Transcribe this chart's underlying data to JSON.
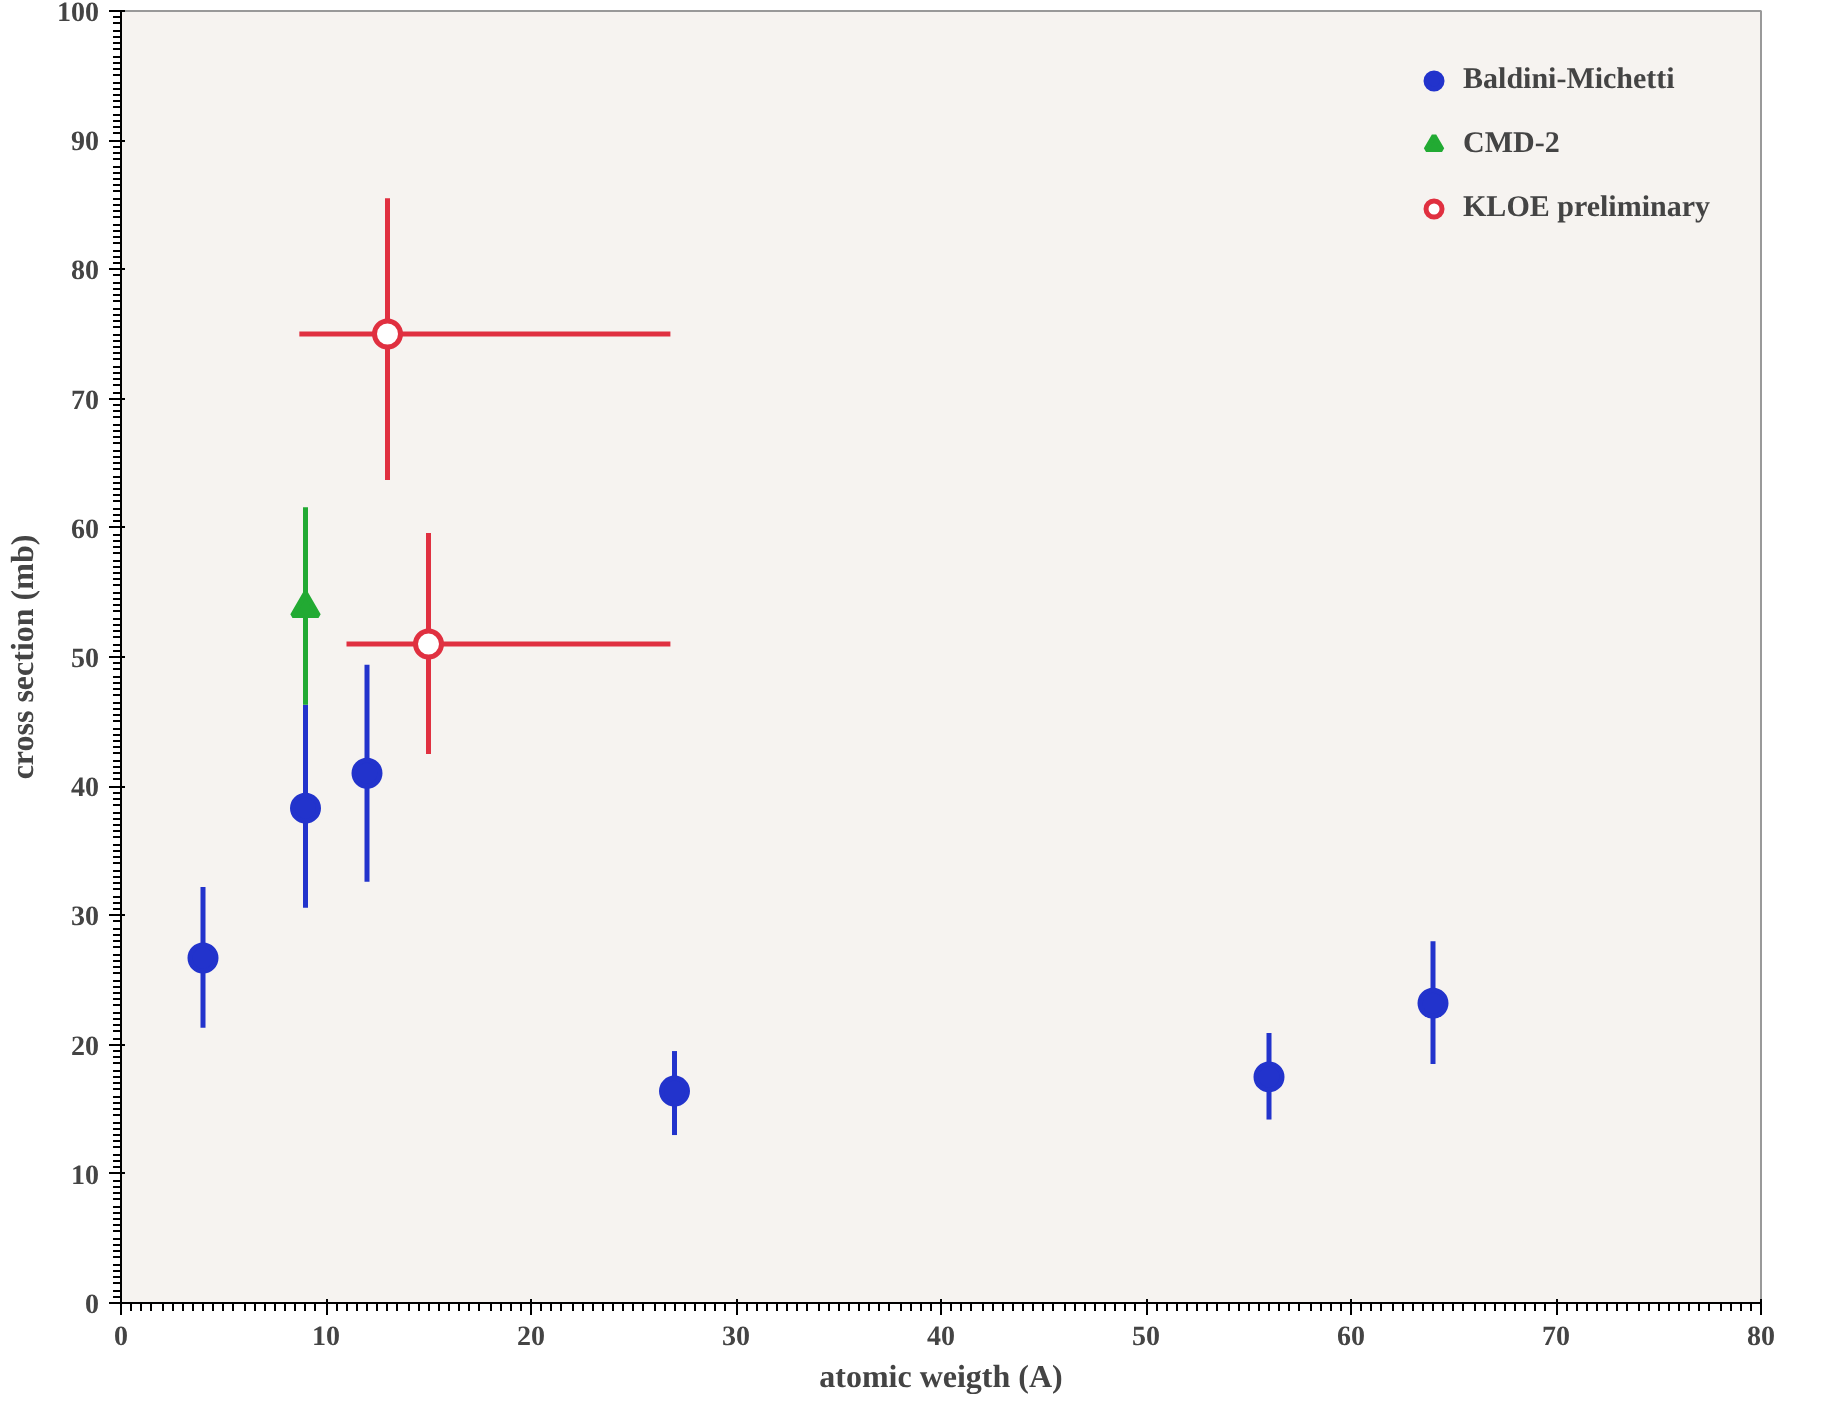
{
  "chart_data": {
    "type": "scatter",
    "xlabel": "atomic weigth (A)",
    "ylabel": "cross section (mb)",
    "xlim": [
      0,
      80
    ],
    "xticks": [
      0,
      10,
      20,
      30,
      40,
      50,
      60,
      70,
      80
    ],
    "ylim": [
      0,
      100
    ],
    "yticks": [
      0,
      10,
      20,
      30,
      40,
      50,
      60,
      70,
      80,
      90,
      100
    ],
    "grid": false,
    "legend": "top right",
    "series": [
      {
        "name": "Baldini-Michetti",
        "color": "#2233cc",
        "marker": "circle",
        "x": [
          4,
          9,
          12,
          27,
          56,
          64
        ],
        "values": [
          26.7,
          38.3,
          41,
          16.4,
          17.5,
          23.2
        ],
        "errors": [
          [
            21.3,
            32.2
          ],
          [
            30.6,
            46.3
          ],
          [
            32.6,
            49.4
          ],
          [
            13,
            19.5
          ],
          [
            14.2,
            20.9
          ],
          [
            18.5,
            28
          ]
        ]
      },
      {
        "name": "CMD-2",
        "color": "#22aa33",
        "marker": "triangle",
        "x": [
          9
        ],
        "values": [
          53.8
        ],
        "errors": [
          [
            46.3,
            61.6
          ]
        ]
      },
      {
        "name": "KLOE preliminary",
        "color": "#e03040",
        "marker": "open circle",
        "x": [
          13,
          15
        ],
        "values": [
          75,
          51
        ],
        "errors": [
          [
            63.7,
            85.5
          ],
          [
            42.5,
            59.6
          ]
        ],
        "xerrors": [
          [
            8.7,
            26.8
          ],
          [
            11,
            26.8
          ]
        ]
      }
    ]
  }
}
